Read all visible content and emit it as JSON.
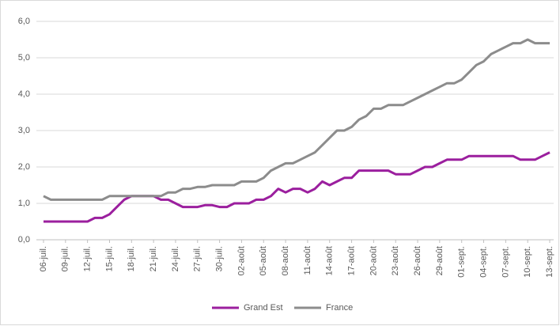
{
  "chart_data": {
    "type": "line",
    "categories": [
      "06-juil.",
      null,
      null,
      "09-juil.",
      null,
      null,
      "12-juil.",
      null,
      null,
      "15-juil.",
      null,
      null,
      "18-juil.",
      null,
      null,
      "21-juil.",
      null,
      null,
      "24-juil.",
      null,
      null,
      "27-juil.",
      null,
      null,
      "30-juil.",
      null,
      null,
      "02-août",
      null,
      null,
      "05-août",
      null,
      null,
      "08-août",
      null,
      null,
      "11-août",
      null,
      null,
      "14-août",
      null,
      null,
      "17-août",
      null,
      null,
      "20-août",
      null,
      null,
      "23-août",
      null,
      null,
      "26-août",
      null,
      null,
      "29-août",
      null,
      null,
      "01-sept.",
      null,
      null,
      "04-sept.",
      null,
      null,
      "07-sept.",
      null,
      null,
      "10-sept.",
      null,
      null,
      "13-sept."
    ],
    "series": [
      {
        "name": "Grand Est",
        "color": "#9b1f9e",
        "values": [
          0.5,
          0.5,
          0.5,
          0.5,
          0.5,
          0.5,
          0.5,
          0.6,
          0.6,
          0.7,
          0.9,
          1.1,
          1.2,
          1.2,
          1.2,
          1.2,
          1.1,
          1.1,
          1.0,
          0.9,
          0.9,
          0.9,
          0.95,
          0.95,
          0.9,
          0.9,
          1.0,
          1.0,
          1.0,
          1.1,
          1.1,
          1.2,
          1.4,
          1.3,
          1.4,
          1.4,
          1.3,
          1.4,
          1.6,
          1.5,
          1.6,
          1.7,
          1.7,
          1.9,
          1.9,
          1.9,
          1.9,
          1.9,
          1.8,
          1.8,
          1.8,
          1.9,
          2.0,
          2.0,
          2.1,
          2.2,
          2.2,
          2.2,
          2.3,
          2.3,
          2.3,
          2.3,
          2.3,
          2.3,
          2.3,
          2.2,
          2.2,
          2.2,
          2.3,
          2.4
        ]
      },
      {
        "name": "France",
        "color": "#8c8c8c",
        "values": [
          1.2,
          1.1,
          1.1,
          1.1,
          1.1,
          1.1,
          1.1,
          1.1,
          1.1,
          1.2,
          1.2,
          1.2,
          1.2,
          1.2,
          1.2,
          1.2,
          1.2,
          1.3,
          1.3,
          1.4,
          1.4,
          1.45,
          1.45,
          1.5,
          1.5,
          1.5,
          1.5,
          1.6,
          1.6,
          1.6,
          1.7,
          1.9,
          2.0,
          2.1,
          2.1,
          2.2,
          2.3,
          2.4,
          2.6,
          2.8,
          3.0,
          3.0,
          3.1,
          3.3,
          3.4,
          3.6,
          3.6,
          3.7,
          3.7,
          3.7,
          3.8,
          3.9,
          4.0,
          4.1,
          4.2,
          4.3,
          4.3,
          4.4,
          4.6,
          4.8,
          4.9,
          5.1,
          5.2,
          5.3,
          5.4,
          5.4,
          5.5,
          5.4,
          5.4,
          5.4
        ]
      }
    ],
    "ylim": [
      0,
      6
    ],
    "yticks": [
      {
        "value": 0,
        "label": "0,0"
      },
      {
        "value": 1,
        "label": "1,0"
      },
      {
        "value": 2,
        "label": "2,0"
      },
      {
        "value": 3,
        "label": "3,0"
      },
      {
        "value": 4,
        "label": "4,0"
      },
      {
        "value": 5,
        "label": "5,0"
      },
      {
        "value": 6,
        "label": "6,0"
      }
    ],
    "grid": true,
    "legend": "bottom"
  }
}
